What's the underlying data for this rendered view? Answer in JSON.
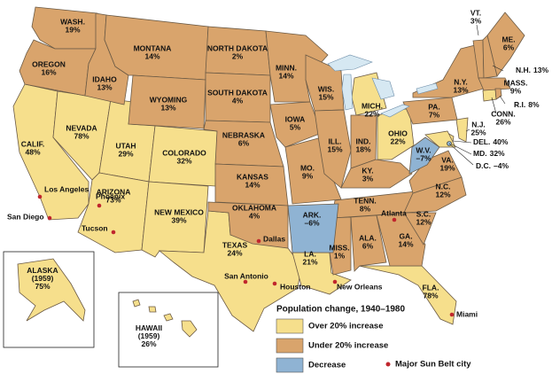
{
  "legend": {
    "title": "Population change, 1940–1980",
    "city_label": "Major Sun Belt city",
    "city_color": "#c0262d"
  },
  "groups": [
    {
      "label": "Over 20% increase",
      "color": "#f6df8c",
      "states": [
        {
          "name": "CALIF.",
          "change": "48%"
        },
        {
          "name": "NEVADA",
          "change": "78%"
        },
        {
          "name": "UTAH",
          "change": "29%"
        },
        {
          "name": "ARIZONA",
          "change": "73%"
        },
        {
          "name": "COLORADO",
          "change": "32%"
        },
        {
          "name": "NEW MEXICO",
          "change": "39%"
        },
        {
          "name": "TEXAS",
          "change": "24%"
        },
        {
          "name": "LA.",
          "change": "21%"
        },
        {
          "name": "MICH.",
          "change": "22%"
        },
        {
          "name": "OHIO",
          "change": "22%"
        },
        {
          "name": "N.J.",
          "change": "25%"
        },
        {
          "name": "DEL.",
          "change": "40%"
        },
        {
          "name": "MD.",
          "change": "32%"
        },
        {
          "name": "CONN.",
          "change": "26%"
        },
        {
          "name": "FLA.",
          "change": "78%"
        },
        {
          "name": "ALASKA",
          "admitted": "(1959)",
          "change": "75%"
        },
        {
          "name": "HAWAII",
          "admitted": "(1959)",
          "change": "26%"
        }
      ]
    },
    {
      "label": "Under 20% increase",
      "color": "#d9a46c",
      "states": [
        {
          "name": "WASH.",
          "change": "19%"
        },
        {
          "name": "OREGON",
          "change": "16%"
        },
        {
          "name": "IDAHO",
          "change": "13%"
        },
        {
          "name": "MONTANA",
          "change": "14%"
        },
        {
          "name": "WYOMING",
          "change": "13%"
        },
        {
          "name": "NORTH DAKOTA",
          "change": "2%"
        },
        {
          "name": "SOUTH DAKOTA",
          "change": "4%"
        },
        {
          "name": "NEBRASKA",
          "change": "6%"
        },
        {
          "name": "KANSAS",
          "change": "14%"
        },
        {
          "name": "OKLAHOMA",
          "change": "4%"
        },
        {
          "name": "MINN.",
          "change": "14%"
        },
        {
          "name": "IOWA",
          "change": "5%"
        },
        {
          "name": "MO.",
          "change": "9%"
        },
        {
          "name": "WIS.",
          "change": "15%"
        },
        {
          "name": "ILL.",
          "change": "15%"
        },
        {
          "name": "IND.",
          "change": "18%"
        },
        {
          "name": "KY.",
          "change": "3%"
        },
        {
          "name": "TENN.",
          "change": "8%"
        },
        {
          "name": "MISS.",
          "change": "1%"
        },
        {
          "name": "ALA.",
          "change": "6%"
        },
        {
          "name": "GA.",
          "change": "14%"
        },
        {
          "name": "S.C.",
          "change": "12%"
        },
        {
          "name": "N.C.",
          "change": "12%"
        },
        {
          "name": "VA.",
          "change": "19%"
        },
        {
          "name": "PA.",
          "change": "7%"
        },
        {
          "name": "N.Y.",
          "change": "13%"
        },
        {
          "name": "VT.",
          "change": "3%"
        },
        {
          "name": "ME.",
          "change": "6%"
        },
        {
          "name": "N.H.",
          "change": "13%"
        },
        {
          "name": "MASS.",
          "change": "9%"
        },
        {
          "name": "R.I.",
          "change": "8%"
        }
      ]
    },
    {
      "label": "Decrease",
      "color": "#8fb3d3",
      "states": [
        {
          "name": "ARK.",
          "change": "–6%"
        },
        {
          "name": "W.V.",
          "change": "–7%"
        },
        {
          "name": "D.C.",
          "change": "–4%"
        }
      ]
    }
  ],
  "cities": [
    "Los Angeles",
    "San Diego",
    "Phoenix",
    "Tucson",
    "Dallas",
    "San Antonio",
    "Houston",
    "New Orleans",
    "Atlanta",
    "Miami"
  ]
}
